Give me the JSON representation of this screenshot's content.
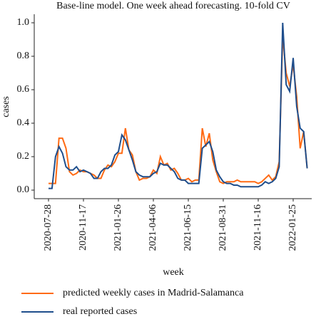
{
  "chart_data": {
    "type": "line",
    "title": "Base-line model. One week ahead forecasting. 10-fold CV",
    "x_label": "week",
    "y_label": "cases",
    "categories": [
      "2020-07-28",
      null,
      null,
      null,
      null,
      null,
      null,
      null,
      null,
      null,
      "2020-11-17",
      null,
      null,
      null,
      null,
      null,
      null,
      null,
      null,
      null,
      "2021-01-26",
      null,
      null,
      null,
      null,
      null,
      null,
      null,
      null,
      null,
      "2021-04-06",
      null,
      null,
      null,
      null,
      null,
      null,
      null,
      null,
      null,
      "2021-06-15",
      null,
      null,
      null,
      null,
      null,
      null,
      null,
      null,
      null,
      "2021-08-31",
      null,
      null,
      null,
      null,
      null,
      null,
      null,
      null,
      null,
      "2021-11-16",
      null,
      null,
      null,
      null,
      null,
      null,
      null,
      null,
      null,
      "2022-01-25",
      null,
      null,
      null,
      null
    ],
    "series": [
      {
        "name": "predicted weekly cases in Madrid-Salamanca",
        "color": "#ff6a13",
        "values": [
          0.04,
          0.04,
          0.04,
          0.31,
          0.31,
          0.25,
          0.11,
          0.09,
          0.1,
          0.12,
          0.11,
          0.11,
          0.1,
          0.09,
          0.07,
          0.07,
          0.12,
          0.15,
          0.14,
          0.17,
          0.22,
          0.22,
          0.37,
          0.24,
          0.21,
          0.11,
          0.06,
          0.07,
          0.07,
          0.08,
          0.12,
          0.1,
          0.2,
          0.15,
          0.16,
          0.12,
          0.13,
          0.1,
          0.06,
          0.06,
          0.07,
          0.05,
          0.06,
          0.06,
          0.37,
          0.26,
          0.34,
          0.18,
          0.11,
          0.05,
          0.04,
          0.05,
          0.05,
          0.05,
          0.06,
          0.05,
          0.05,
          0.05,
          0.05,
          0.05,
          0.04,
          0.05,
          0.07,
          0.09,
          0.06,
          0.08,
          0.17,
          0.92,
          0.7,
          0.62,
          0.75,
          0.56,
          0.25,
          0.35,
          0.13
        ]
      },
      {
        "name": "real reported cases",
        "color": "#1f4e8c",
        "values": [
          0.01,
          0.01,
          0.2,
          0.26,
          0.22,
          0.14,
          0.12,
          0.12,
          0.14,
          0.11,
          0.12,
          0.11,
          0.1,
          0.07,
          0.07,
          0.11,
          0.13,
          0.13,
          0.15,
          0.21,
          0.23,
          0.33,
          0.3,
          0.24,
          0.18,
          0.11,
          0.09,
          0.08,
          0.08,
          0.08,
          0.1,
          0.11,
          0.16,
          0.15,
          0.15,
          0.13,
          0.11,
          0.07,
          0.06,
          0.06,
          0.04,
          0.04,
          0.04,
          0.04,
          0.25,
          0.27,
          0.29,
          0.23,
          0.12,
          0.08,
          0.05,
          0.04,
          0.04,
          0.03,
          0.03,
          0.02,
          0.02,
          0.02,
          0.02,
          0.02,
          0.02,
          0.03,
          0.05,
          0.04,
          0.05,
          0.07,
          0.14,
          1.0,
          0.63,
          0.59,
          0.79,
          0.5,
          0.37,
          0.35,
          0.13
        ]
      }
    ],
    "ylim": [
      -0.05,
      1.05
    ],
    "yticks": [
      {
        "value": 0,
        "label": "0.0"
      },
      {
        "value": 0.2,
        "label": "0.2"
      },
      {
        "value": 0.4,
        "label": "0.4"
      },
      {
        "value": 0.6,
        "label": "0.6"
      },
      {
        "value": 0.8,
        "label": "0.8"
      },
      {
        "value": 1,
        "label": "1.0"
      }
    ],
    "legend": "bottom"
  }
}
